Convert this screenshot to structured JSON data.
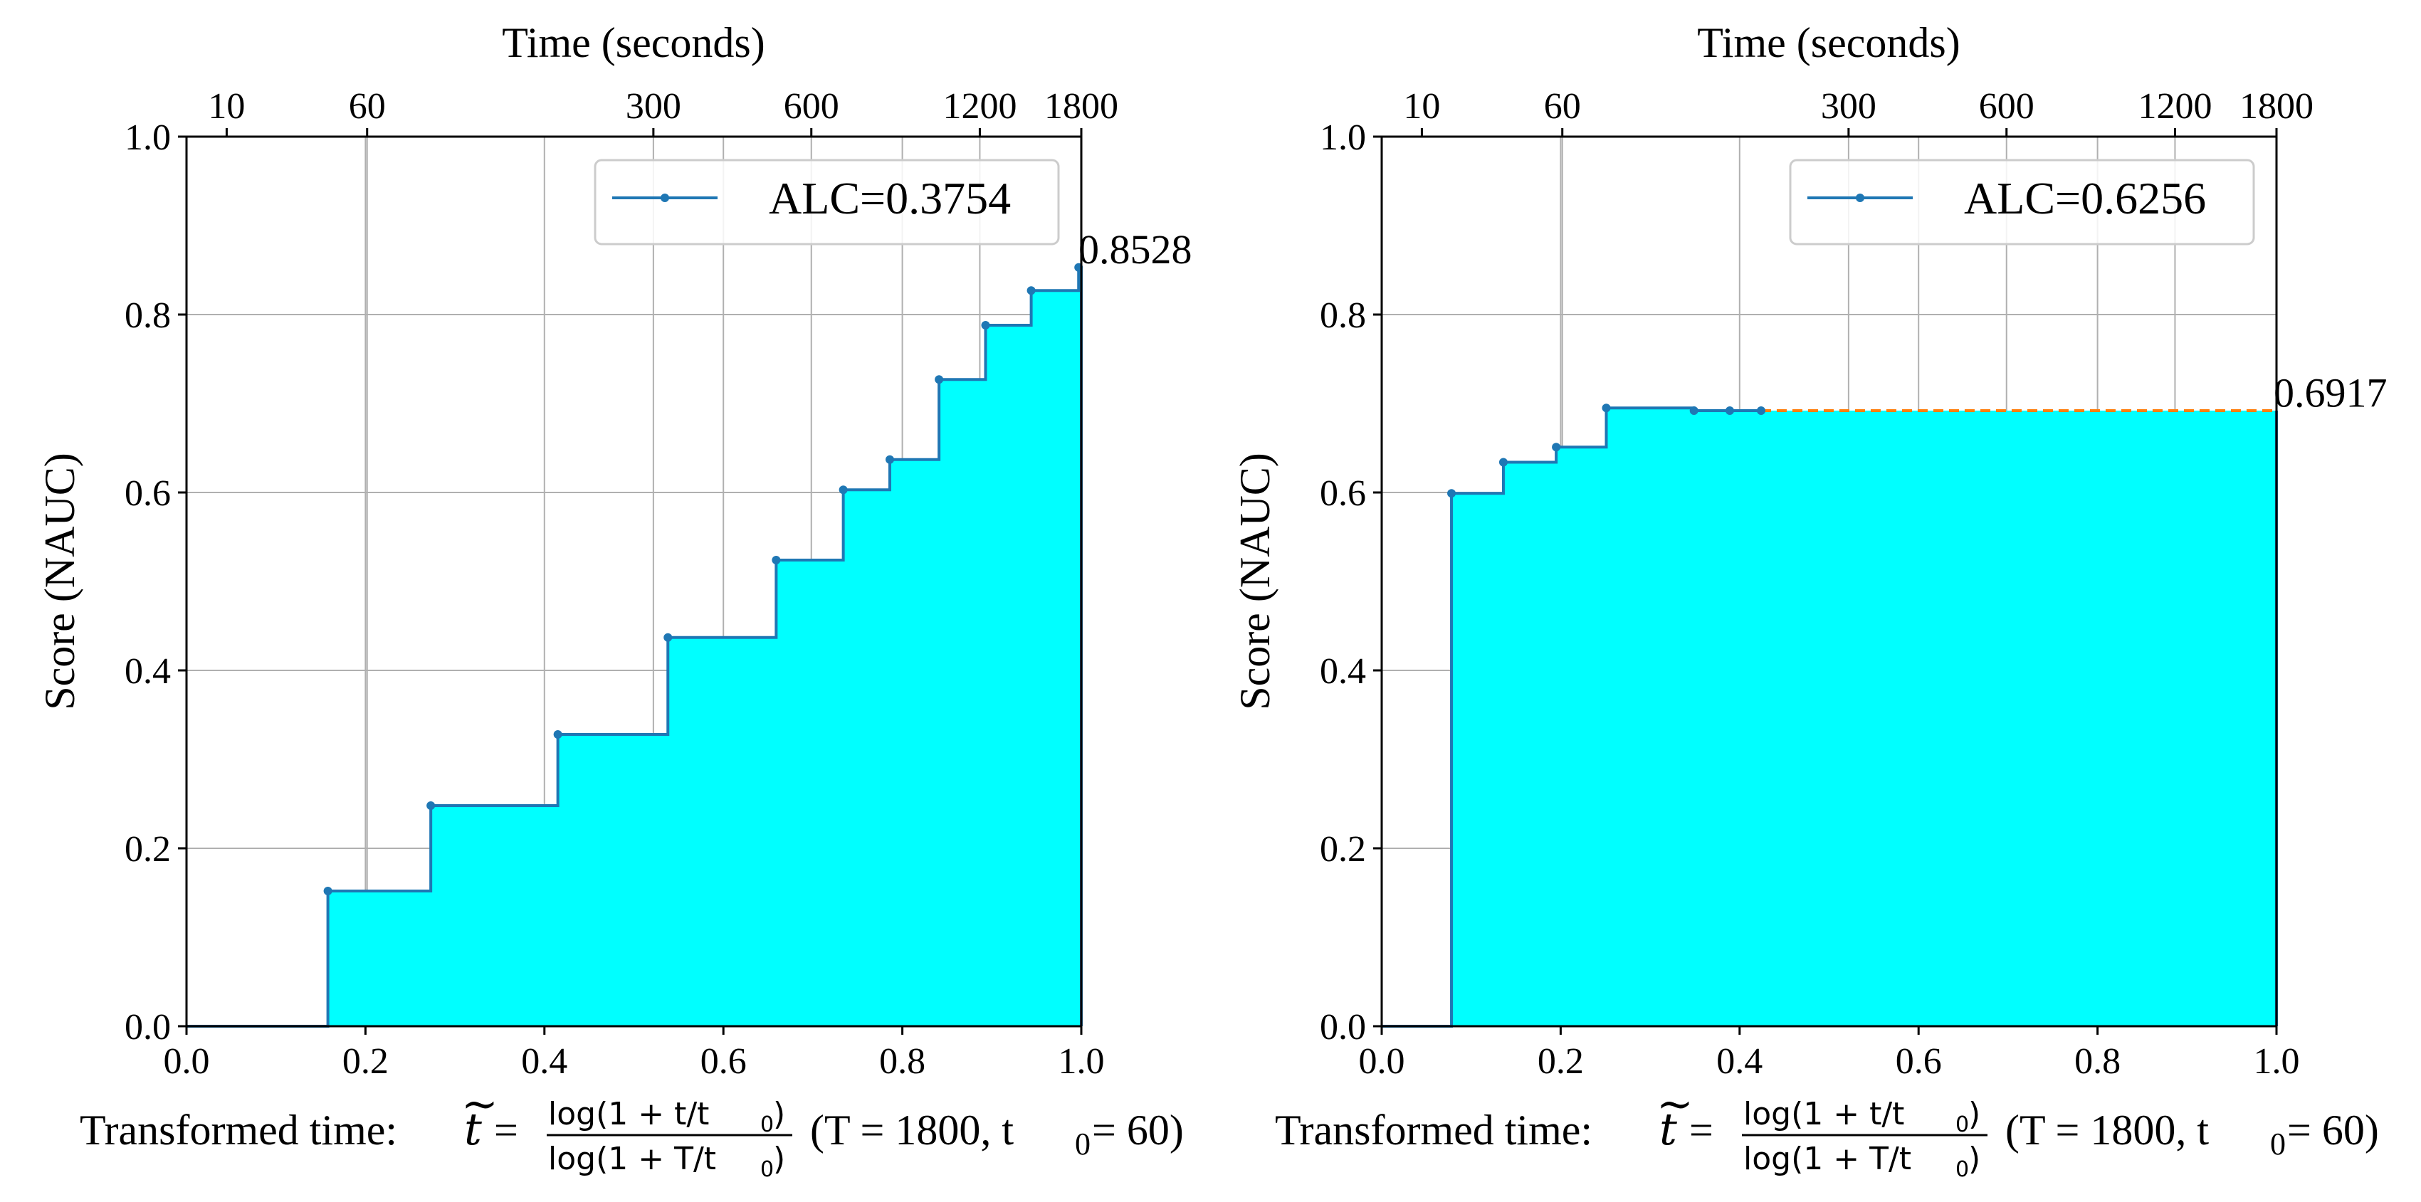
{
  "chart_data": [
    {
      "type": "step-area",
      "top_xlabel": "Time (seconds)",
      "ylabel": "Score (NAUC)",
      "xlim": [
        0,
        1
      ],
      "ylim": [
        0,
        1
      ],
      "x_ticks": [
        0.0,
        0.2,
        0.4,
        0.6,
        0.8,
        1.0
      ],
      "x_tick_labels": [
        "0.0",
        "0.2",
        "0.4",
        "0.6",
        "0.8",
        "1.0"
      ],
      "y_ticks": [
        0.0,
        0.2,
        0.4,
        0.6,
        0.8,
        1.0
      ],
      "y_tick_labels": [
        "0.0",
        "0.2",
        "0.4",
        "0.6",
        "0.8",
        "1.0"
      ],
      "top_ticks_seconds": [
        10,
        60,
        300,
        600,
        1200,
        1800
      ],
      "top_tick_labels": [
        "10",
        "60",
        "300",
        "600",
        "1200",
        "1800"
      ],
      "grid": true,
      "fill_color": "#00ffff",
      "line_color": "#1f77b4",
      "extension_color": "#ff7f0e",
      "legend_label": "ALC=0.3754",
      "legend_position": "top-right",
      "final_score_label": "0.8528",
      "points": [
        {
          "x": 0.158,
          "y": 0.152
        },
        {
          "x": 0.273,
          "y": 0.248
        },
        {
          "x": 0.415,
          "y": 0.328
        },
        {
          "x": 0.538,
          "y": 0.437
        },
        {
          "x": 0.659,
          "y": 0.524
        },
        {
          "x": 0.734,
          "y": 0.603
        },
        {
          "x": 0.786,
          "y": 0.637
        },
        {
          "x": 0.841,
          "y": 0.727
        },
        {
          "x": 0.893,
          "y": 0.788
        },
        {
          "x": 0.944,
          "y": 0.827
        },
        {
          "x": 0.997,
          "y": 0.853
        }
      ],
      "final_score": 0.8528
    },
    {
      "type": "step-area",
      "top_xlabel": "Time (seconds)",
      "ylabel": "Score (NAUC)",
      "xlim": [
        0,
        1
      ],
      "ylim": [
        0,
        1
      ],
      "x_ticks": [
        0.0,
        0.2,
        0.4,
        0.6,
        0.8,
        1.0
      ],
      "x_tick_labels": [
        "0.0",
        "0.2",
        "0.4",
        "0.6",
        "0.8",
        "1.0"
      ],
      "y_ticks": [
        0.0,
        0.2,
        0.4,
        0.6,
        0.8,
        1.0
      ],
      "y_tick_labels": [
        "0.0",
        "0.2",
        "0.4",
        "0.6",
        "0.8",
        "1.0"
      ],
      "top_ticks_seconds": [
        10,
        60,
        300,
        600,
        1200,
        1800
      ],
      "top_tick_labels": [
        "10",
        "60",
        "300",
        "600",
        "1200",
        "1800"
      ],
      "grid": true,
      "fill_color": "#00ffff",
      "line_color": "#1f77b4",
      "extension_color": "#ff7f0e",
      "legend_label": "ALC=0.6256",
      "legend_position": "top-right",
      "final_score_label": "0.6917",
      "points": [
        {
          "x": 0.078,
          "y": 0.599
        },
        {
          "x": 0.136,
          "y": 0.634
        },
        {
          "x": 0.195,
          "y": 0.651
        },
        {
          "x": 0.251,
          "y": 0.695
        },
        {
          "x": 0.349,
          "y": 0.692
        },
        {
          "x": 0.389,
          "y": 0.692
        },
        {
          "x": 0.424,
          "y": 0.692
        }
      ],
      "final_score": 0.6917
    }
  ],
  "formula": {
    "prefix": "Transformed time: ",
    "symbol": "t",
    "tilde": "~",
    "equals": "=",
    "numerator": "log(1 + t/t",
    "denominator": "log(1 + T/t",
    "sub0": "0",
    "close": ")",
    "params_open": "(T = 1800,  t",
    "params_close": " = 60)"
  }
}
